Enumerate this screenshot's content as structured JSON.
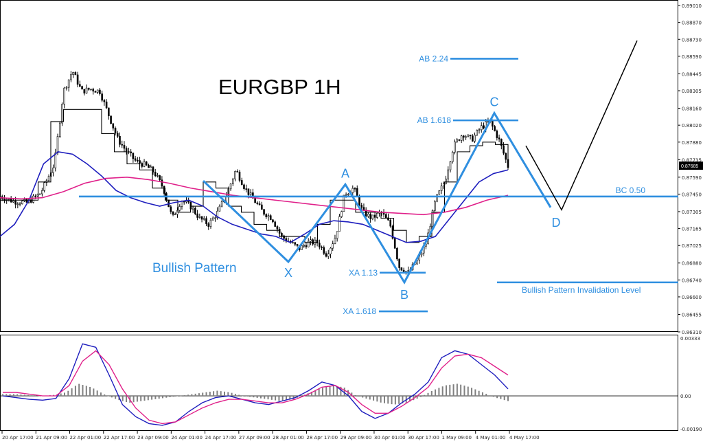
{
  "chart_data": [
    {
      "type": "candlestick",
      "title": "EURGBP 1H",
      "symbol": "EURGBP",
      "timeframe": "1H",
      "price_axis": {
        "ylim": [
          0.8631,
          0.8901
        ],
        "ticks": [
          "0.89010",
          "0.88870",
          "0.88730",
          "0.88590",
          "0.88445",
          "0.88305",
          "0.88160",
          "0.88020",
          "0.87880",
          "0.87735",
          "0.87590",
          "0.87450",
          "0.87305",
          "0.87165",
          "0.87025",
          "0.86880",
          "0.86740",
          "0.86600",
          "0.86455",
          "0.86310"
        ],
        "current_price": "0.87685"
      },
      "time_axis": {
        "labels": [
          "20 Apr 17:00",
          "21 Apr 09:00",
          "22 Apr 01:00",
          "22 Apr 17:00",
          "23 Apr 09:00",
          "24 Apr 01:00",
          "24 Apr 17:00",
          "27 Apr 09:00",
          "28 Apr 01:00",
          "28 Apr 17:00",
          "29 Apr 09:00",
          "30 Apr 01:00",
          "30 Apr 17:00",
          "1 May 09:00",
          "4 May 01:00",
          "4 May 17:00"
        ]
      },
      "price_path": [
        [
          0,
          0.8743
        ],
        [
          6,
          0.8739
        ],
        [
          12,
          0.8738
        ],
        [
          18,
          0.8746
        ],
        [
          24,
          0.877
        ],
        [
          28,
          0.883
        ],
        [
          32,
          0.8847
        ],
        [
          36,
          0.883
        ],
        [
          40,
          0.8832
        ],
        [
          44,
          0.883
        ],
        [
          48,
          0.881
        ],
        [
          52,
          0.879
        ],
        [
          56,
          0.878
        ],
        [
          60,
          0.8772
        ],
        [
          64,
          0.8769
        ],
        [
          68,
          0.8763
        ],
        [
          72,
          0.875
        ],
        [
          76,
          0.8725
        ],
        [
          80,
          0.874
        ],
        [
          84,
          0.8735
        ],
        [
          88,
          0.8725
        ],
        [
          92,
          0.872
        ],
        [
          96,
          0.873
        ],
        [
          100,
          0.8745
        ],
        [
          104,
          0.8765
        ],
        [
          108,
          0.875
        ],
        [
          112,
          0.874
        ],
        [
          116,
          0.873
        ],
        [
          120,
          0.8725
        ],
        [
          124,
          0.871
        ],
        [
          128,
          0.8705
        ],
        [
          132,
          0.87
        ],
        [
          136,
          0.8705
        ],
        [
          140,
          0.8705
        ],
        [
          144,
          0.8695
        ],
        [
          148,
          0.871
        ],
        [
          152,
          0.8745
        ],
        [
          156,
          0.875
        ],
        [
          160,
          0.873
        ],
        [
          164,
          0.8725
        ],
        [
          168,
          0.873
        ],
        [
          172,
          0.872
        ],
        [
          176,
          0.8685
        ],
        [
          180,
          0.868
        ],
        [
          184,
          0.869
        ],
        [
          188,
          0.8705
        ],
        [
          192,
          0.874
        ],
        [
          196,
          0.8755
        ],
        [
          200,
          0.8785
        ],
        [
          204,
          0.8795
        ],
        [
          208,
          0.879
        ],
        [
          212,
          0.88
        ],
        [
          216,
          0.8805
        ],
        [
          220,
          0.879
        ],
        [
          224,
          0.8768
        ]
      ],
      "series": [
        {
          "type": "line",
          "color": "#000000",
          "values": [
            0.874,
            0.874,
            0.874,
            0.8755,
            0.8805,
            0.8815,
            0.8815,
            0.8815,
            0.8795,
            0.878,
            0.877,
            0.8765,
            0.875,
            0.874,
            0.873,
            0.8735,
            0.8755,
            0.875,
            0.8735,
            0.873,
            0.872,
            0.8715,
            0.871,
            0.871,
            0.8705,
            0.872,
            0.874,
            0.874,
            0.873,
            0.873,
            0.8725,
            0.8715,
            0.8705,
            0.871,
            0.873,
            0.8755,
            0.878,
            0.8785,
            0.8788,
            0.8786,
            0.877
          ]
        },
        {
          "type": "line",
          "color": "#1e1ebe",
          "values": [
            0.871,
            0.872,
            0.874,
            0.877,
            0.878,
            0.8778,
            0.877,
            0.876,
            0.8748,
            0.8742,
            0.8738,
            0.8735,
            0.8738,
            0.874,
            0.8735,
            0.8726,
            0.872,
            0.8716,
            0.8712,
            0.871,
            0.8705,
            0.8712,
            0.872,
            0.8723,
            0.8722,
            0.872,
            0.8715,
            0.871,
            0.8705,
            0.8706,
            0.871,
            0.8725,
            0.874,
            0.8755,
            0.8762,
            0.8765
          ]
        },
        {
          "type": "line",
          "color": "#e0208a",
          "values": [
            0.8742,
            0.8741,
            0.8742,
            0.8747,
            0.8754,
            0.8758,
            0.8759,
            0.8757,
            0.8754,
            0.875,
            0.8747,
            0.8744,
            0.8742,
            0.874,
            0.8738,
            0.8736,
            0.8734,
            0.8732,
            0.873,
            0.8729,
            0.8728,
            0.873,
            0.8734,
            0.874,
            0.8744
          ]
        }
      ],
      "pattern": {
        "points": [
          {
            "label": "X",
            "price": 0.8689
          },
          {
            "label": "A",
            "price": 0.8753
          },
          {
            "label": "B",
            "price": 0.8672
          },
          {
            "label": "C",
            "price": 0.8812
          },
          {
            "label": "D",
            "price": 0.8734
          }
        ],
        "projection": [
          0.8785,
          0.8732,
          0.8872
        ],
        "levels": [
          {
            "label": "AB 2.24",
            "price": 0.8857
          },
          {
            "label": "AB 1.618",
            "price": 0.8806
          },
          {
            "label": "BC 0.50",
            "price": 0.8743
          },
          {
            "label": "XA 1.13",
            "price": 0.868
          },
          {
            "label": "Bullish Pattern Invalidation Level",
            "price": 0.8672
          },
          {
            "label": "XA 1.618",
            "price": 0.8648
          }
        ],
        "pattern_label": "Bullish Pattern"
      },
      "colors": {
        "pattern": "#2f8fe0",
        "projection": "#000000",
        "ema_fast": "#1e1ebe",
        "ema_slow": "#e0208a",
        "candles": "#000000"
      }
    },
    {
      "type": "line",
      "title": "",
      "ylim": [
        -0.0019,
        0.00333
      ],
      "ticks": [
        "0.00333",
        "0.00",
        "-0.00190"
      ],
      "zero_label": "0.00",
      "series": [
        {
          "color": "#1e1ebe",
          "values": [
            0.0,
            -0.0001,
            -0.0002,
            -0.00025,
            -0.00015,
            0.001,
            0.003,
            0.0028,
            0.0012,
            -0.0005,
            -0.0012,
            -0.0016,
            -0.0017,
            -0.0015,
            -0.0009,
            -0.0004,
            -0.0001,
            0.0,
            -0.0002,
            -0.0004,
            -0.0005,
            -0.0003,
            -0.0001,
            0.0003,
            0.0008,
            0.0006,
            0.0,
            -0.0009,
            -0.0013,
            -0.001,
            -0.0004,
            0.0001,
            0.0008,
            0.0022,
            0.0026,
            0.0024,
            0.0018,
            0.0012,
            0.0004
          ]
        },
        {
          "color": "#e0208a",
          "values": [
            0.0002,
            0.0002,
            0.0001,
            0.0,
            0.0,
            0.0006,
            0.002,
            0.0026,
            0.0018,
            0.0004,
            -0.0007,
            -0.0014,
            -0.0016,
            -0.0015,
            -0.0011,
            -0.0007,
            -0.0004,
            -0.0002,
            -0.0002,
            -0.0003,
            -0.0004,
            -0.0004,
            -0.0002,
            0.0001,
            0.0005,
            0.0006,
            0.0002,
            -0.0005,
            -0.001,
            -0.001,
            -0.0006,
            -0.0001,
            0.0005,
            0.0016,
            0.0023,
            0.0024,
            0.0022,
            0.0017,
            0.0012
          ]
        },
        {
          "color": "#808080",
          "type": "histogram",
          "values": [
            0.0001,
            0.0001,
            5e-05,
            0.0,
            5e-05,
            0.0002,
            0.0007,
            0.0005,
            0.0001,
            -0.0002,
            -0.0004,
            -0.0003,
            -0.0002,
            -0.0001,
            0.0,
            0.0001,
            0.0002,
            0.0003,
            0.0002,
            0.0,
            -0.0001,
            -0.0002,
            -0.0003,
            -0.0002,
            0.0001,
            0.0004,
            0.0006,
            0.0005,
            0.0,
            -0.0002,
            -0.0004,
            -0.0005,
            -0.0004,
            -0.0001,
            0.0003,
            0.0006,
            0.0007,
            0.0005,
            0.0002,
            -0.0001,
            -0.0003
          ]
        }
      ]
    }
  ]
}
